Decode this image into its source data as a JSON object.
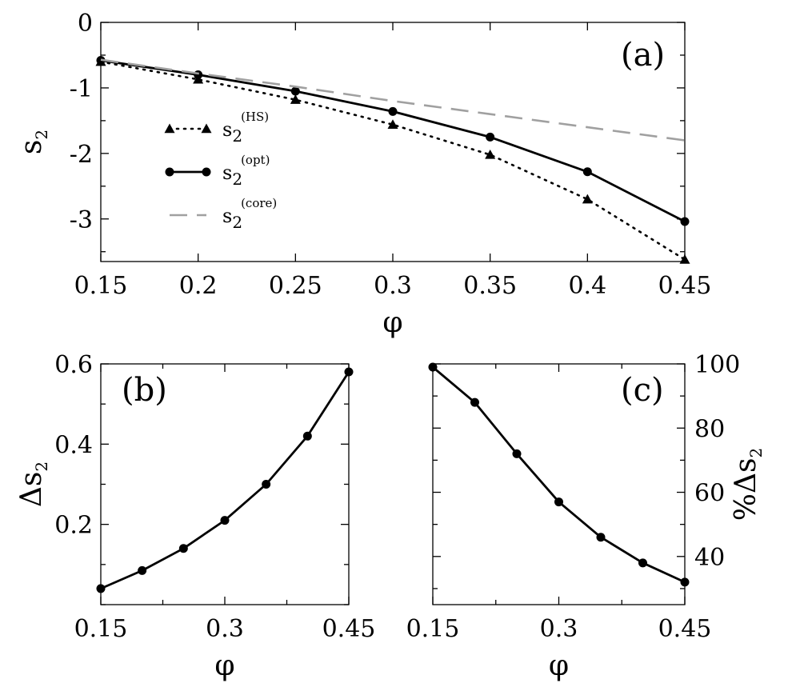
{
  "chart_data": [
    {
      "panel": "(a)",
      "type": "line",
      "xlabel": "φ",
      "ylabel": {
        "base": "s",
        "sub": "2"
      },
      "xlim": [
        0.15,
        0.45
      ],
      "ylim": [
        -3.65,
        0
      ],
      "xticks": [
        0.15,
        0.2,
        0.25,
        0.3,
        0.35,
        0.4,
        0.45
      ],
      "xtick_labels": [
        "0.15",
        "0.2",
        "0.25",
        "0.3",
        "0.35",
        "0.4",
        "0.45"
      ],
      "yticks": [
        0,
        -1,
        -2,
        -3
      ],
      "ytick_labels": [
        "0",
        "-1",
        "-2",
        "-3"
      ],
      "legend_placement": "left",
      "series": [
        {
          "key": "hs",
          "legend": {
            "base": "s",
            "sub": "2",
            "sup": "(HS)"
          },
          "style": "dotted",
          "marker": "triangle",
          "color": "#000000",
          "x": [
            0.15,
            0.2,
            0.25,
            0.3,
            0.35,
            0.4,
            0.45
          ],
          "y": [
            -0.6,
            -0.87,
            -1.18,
            -1.56,
            -2.02,
            -2.7,
            -3.62
          ]
        },
        {
          "key": "opt",
          "legend": {
            "base": "s",
            "sub": "2",
            "sup": "(opt)"
          },
          "style": "solid",
          "marker": "circle",
          "color": "#000000",
          "x": [
            0.15,
            0.2,
            0.25,
            0.3,
            0.35,
            0.4,
            0.45
          ],
          "y": [
            -0.58,
            -0.8,
            -1.05,
            -1.36,
            -1.75,
            -2.28,
            -3.04
          ]
        },
        {
          "key": "core",
          "legend": {
            "base": "s",
            "sub": "2",
            "sup": "(core)"
          },
          "style": "dashed",
          "marker": "none",
          "color": "#a0a0a0",
          "x": [
            0.15,
            0.2,
            0.25,
            0.3,
            0.35,
            0.4,
            0.45
          ],
          "y": [
            -0.57,
            -0.78,
            -0.98,
            -1.2,
            -1.4,
            -1.6,
            -1.8
          ]
        }
      ]
    },
    {
      "panel": "(b)",
      "type": "line",
      "xlabel": "φ",
      "ylabel": {
        "base": "Δs",
        "sub": "2"
      },
      "xlim": [
        0.15,
        0.45
      ],
      "ylim": [
        0.0,
        0.6
      ],
      "xticks": [
        0.15,
        0.3,
        0.45
      ],
      "xtick_labels": [
        "0.15",
        "0.3",
        "0.45"
      ],
      "xminor": [
        0.225,
        0.375
      ],
      "yticks": [
        0.2,
        0.4,
        0.6
      ],
      "ytick_labels": [
        "0.2",
        "0.4",
        "0.6"
      ],
      "series": [
        {
          "key": "delta",
          "style": "solid",
          "marker": "circle",
          "color": "#000000",
          "x": [
            0.15,
            0.2,
            0.25,
            0.3,
            0.35,
            0.4,
            0.45
          ],
          "y": [
            0.04,
            0.085,
            0.14,
            0.21,
            0.3,
            0.42,
            0.58
          ]
        }
      ]
    },
    {
      "panel": "(c)",
      "type": "line",
      "xlabel": "φ",
      "ylabel": {
        "base": "%Δs",
        "sub": "2"
      },
      "xlim": [
        0.15,
        0.45
      ],
      "ylim": [
        25,
        100
      ],
      "xticks": [
        0.15,
        0.3,
        0.45
      ],
      "xtick_labels": [
        "0.15",
        "0.3",
        "0.45"
      ],
      "xminor": [
        0.225,
        0.375
      ],
      "yticks": [
        40,
        60,
        80,
        100
      ],
      "ytick_labels": [
        "40",
        "60",
        "80",
        "100"
      ],
      "series": [
        {
          "key": "pct",
          "style": "solid",
          "marker": "circle",
          "color": "#000000",
          "x": [
            0.15,
            0.2,
            0.25,
            0.3,
            0.35,
            0.4,
            0.45
          ],
          "y": [
            99,
            88,
            72,
            57,
            46,
            38,
            32
          ]
        }
      ]
    }
  ]
}
